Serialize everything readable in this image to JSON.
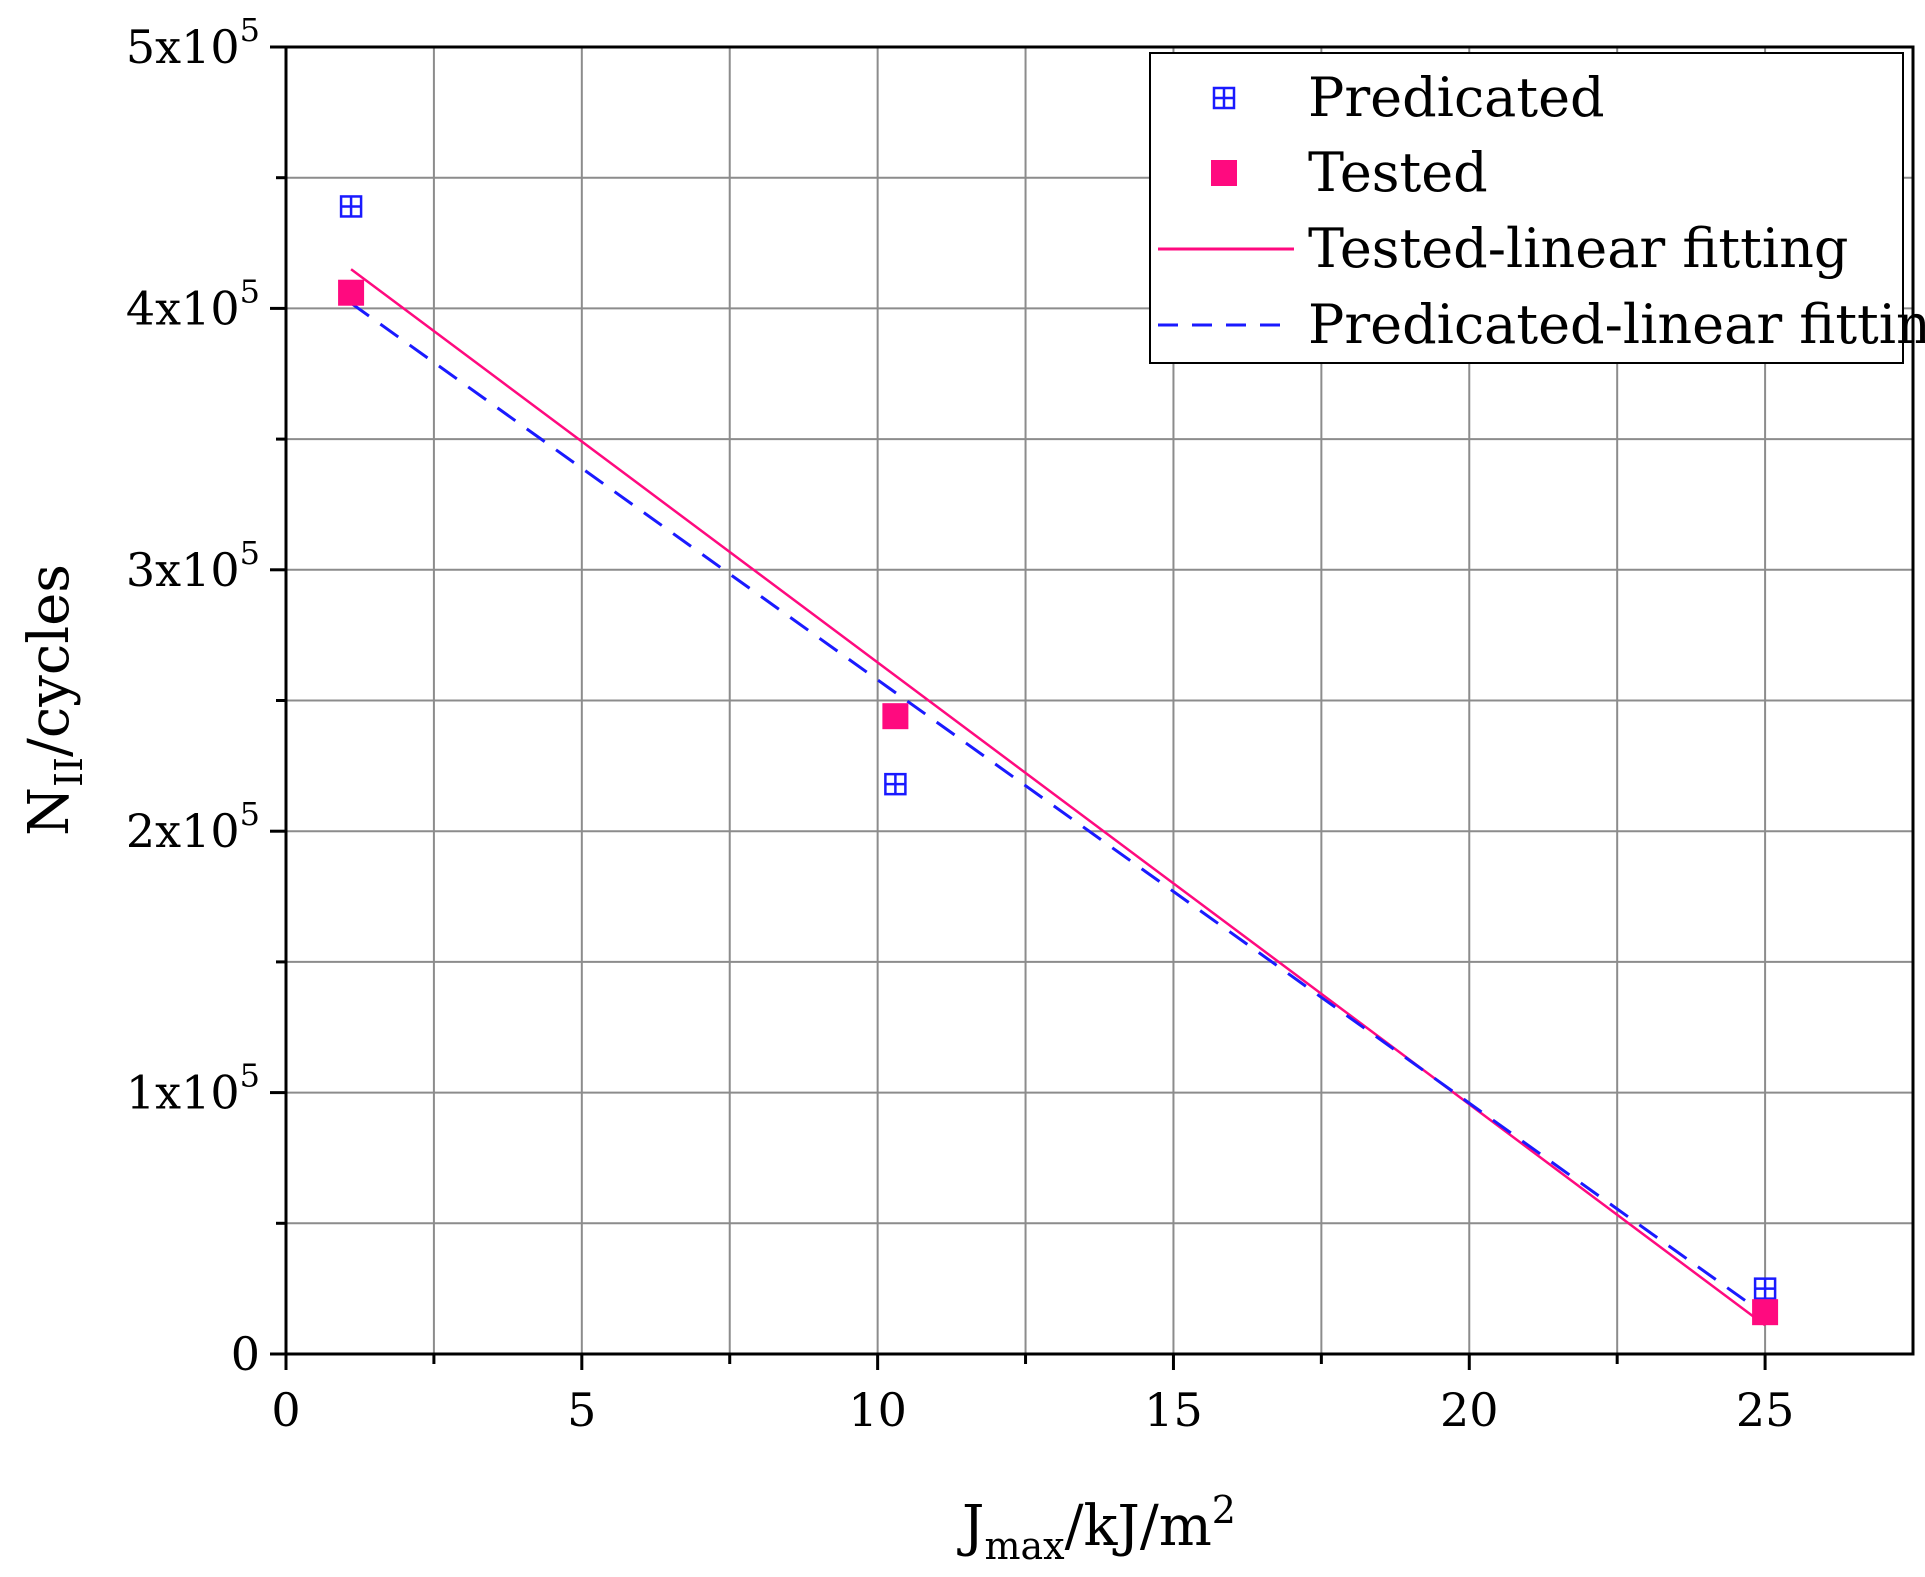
{
  "chart_data": {
    "type": "scatter",
    "x_axis": {
      "label_base": "J",
      "label_sub": "max",
      "label_rest": "/kJ/m",
      "label_sup": "2",
      "range": [
        0,
        27.5
      ],
      "ticks": [
        0,
        5,
        10,
        15,
        20,
        25
      ],
      "tick_labels": [
        "0",
        "5",
        "10",
        "15",
        "20",
        "25"
      ],
      "minor_ticks": [
        2.5,
        7.5,
        12.5,
        17.5,
        22.5
      ]
    },
    "y_axis": {
      "label_base": "N",
      "label_sub": "II",
      "label_rest": "/cycles",
      "range": [
        0,
        500000
      ],
      "ticks": [
        0,
        100000,
        200000,
        300000,
        400000,
        500000
      ],
      "tick_labels": [
        {
          "mant": "0",
          "exp": ""
        },
        {
          "mant": "1x10",
          "exp": "5"
        },
        {
          "mant": "2x10",
          "exp": "5"
        },
        {
          "mant": "3x10",
          "exp": "5"
        },
        {
          "mant": "4x10",
          "exp": "5"
        },
        {
          "mant": "5x10",
          "exp": "5"
        }
      ],
      "minor_ticks": [
        50000,
        150000,
        250000,
        350000,
        450000
      ]
    },
    "grid": true,
    "legend_position": "top-right",
    "series": [
      {
        "name": "Predicated",
        "kind": "points",
        "marker": "square-cross",
        "color": "#1a1aff",
        "x": [
          1.1,
          10.3,
          25.0
        ],
        "y": [
          439000,
          218000,
          25000
        ]
      },
      {
        "name": "Tested",
        "kind": "points",
        "marker": "filled-square",
        "color": "#ff0a7f",
        "x": [
          1.1,
          10.3,
          25.0
        ],
        "y": [
          406000,
          244000,
          16000
        ]
      },
      {
        "name": "Tested-linear fitting",
        "kind": "line",
        "style": "solid",
        "color": "#ff0a7f",
        "x": [
          1.1,
          25.0
        ],
        "y": [
          415000,
          11000
        ]
      },
      {
        "name": "Predicated-linear fitting",
        "kind": "line",
        "style": "dashed",
        "color": "#1a1aff",
        "x": [
          1.1,
          25.0
        ],
        "y": [
          402000,
          15000
        ]
      }
    ]
  }
}
